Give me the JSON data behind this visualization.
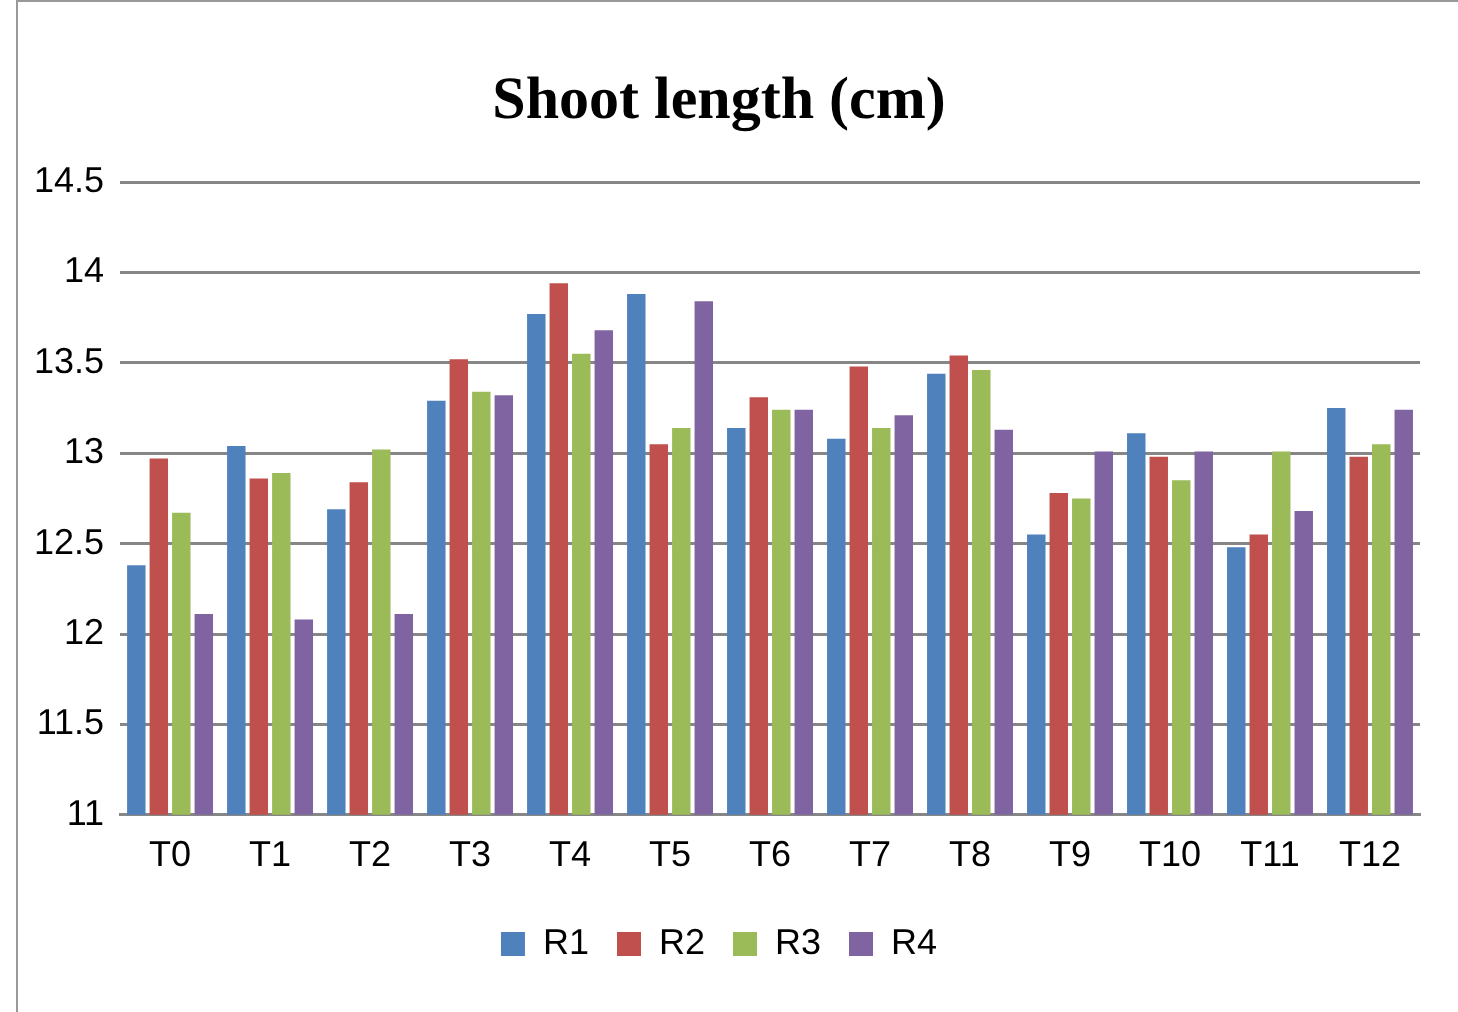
{
  "chart_data": {
    "type": "bar",
    "title": "Shoot length (cm)",
    "categories": [
      "T0",
      "T1",
      "T2",
      "T3",
      "T4",
      "T5",
      "T6",
      "T7",
      "T8",
      "T9",
      "T10",
      "T11",
      "T12"
    ],
    "series": [
      {
        "name": "R1",
        "color": "#4f81bd",
        "values": [
          12.38,
          13.04,
          12.69,
          13.29,
          13.77,
          13.88,
          13.14,
          13.08,
          13.44,
          12.55,
          13.11,
          12.48,
          13.25
        ]
      },
      {
        "name": "R2",
        "color": "#c0504d",
        "values": [
          12.97,
          12.86,
          12.84,
          13.52,
          13.94,
          13.05,
          13.31,
          13.48,
          13.54,
          12.78,
          12.98,
          12.55,
          12.98
        ]
      },
      {
        "name": "R3",
        "color": "#9bbb59",
        "values": [
          12.67,
          12.89,
          13.02,
          13.34,
          13.55,
          13.14,
          13.24,
          13.14,
          13.46,
          12.75,
          12.85,
          13.01,
          13.05
        ]
      },
      {
        "name": "R4",
        "color": "#8064a2",
        "values": [
          12.11,
          12.08,
          12.11,
          13.32,
          13.68,
          13.84,
          13.24,
          13.21,
          13.13,
          13.01,
          13.01,
          12.68,
          13.24
        ]
      }
    ],
    "ylim": [
      11,
      14.5
    ],
    "yticks": [
      11,
      11.5,
      12,
      12.5,
      13,
      13.5,
      14,
      14.5
    ],
    "grid": "y",
    "legend": "bottom"
  }
}
